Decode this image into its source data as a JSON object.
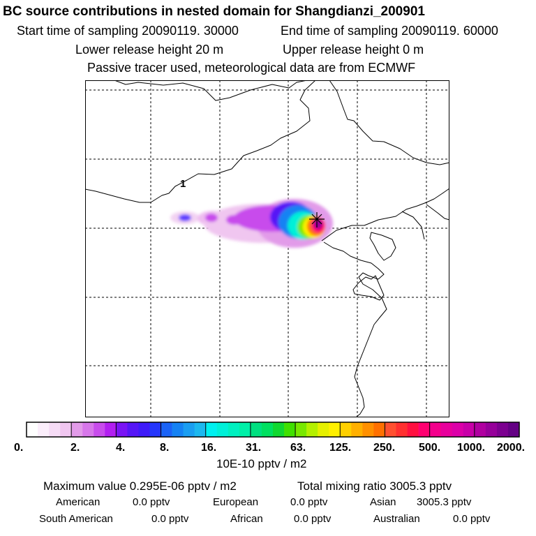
{
  "header": {
    "title": "BC  source contributions in nested domain for Shangdianzi_200901",
    "start_time": "Start time of sampling 20090119. 30000",
    "end_time": "End time of sampling 20090119. 60000",
    "lower_release": "Lower release height   20 m",
    "upper_release": "Upper release height    0 m",
    "tracer_note": "Passive tracer used, meteorological data are from ECMWF"
  },
  "map": {
    "contour_label": "1",
    "receptor_marker": "star-marker"
  },
  "colorbar": {
    "tick_labels": [
      "0.",
      "2.",
      "4.",
      "8.",
      "16.",
      "31.",
      "63.",
      "125.",
      "250.",
      "500.",
      "1000.",
      "2000."
    ],
    "unit": "10E-10 pptv / m2",
    "colors": [
      "#ffffff",
      "#fbeefb",
      "#f6dcf6",
      "#f0c6f0",
      "#e29be9",
      "#d777ea",
      "#c84cec",
      "#b21ff0",
      "#7a14f4",
      "#5616f6",
      "#3f1bf9",
      "#2536fb",
      "#1b63f6",
      "#1582f3",
      "#1a9ef1",
      "#1cb8ef",
      "#00f0f0",
      "#00f0d8",
      "#00f0c0",
      "#00f0a8",
      "#00e080",
      "#00e060",
      "#10d830",
      "#40e000",
      "#78e800",
      "#b4f000",
      "#e6f000",
      "#fff000",
      "#ffd000",
      "#ffb000",
      "#ff9000",
      "#ff7000",
      "#ff5030",
      "#ff3030",
      "#ff1040",
      "#ff0070",
      "#f4008c",
      "#e8009c",
      "#dc00a8",
      "#c800a8",
      "#b000a0",
      "#96009a",
      "#7c0090",
      "#640084"
    ]
  },
  "stats": {
    "max_value": "Maximum value  0.295E-06 pptv / m2",
    "total_mixing": "Total mixing ratio     3005.3 pptv",
    "regions": [
      {
        "name": "American",
        "value": "0.0 pptv"
      },
      {
        "name": "European",
        "value": "0.0 pptv"
      },
      {
        "name": "Asian",
        "value": "3005.3 pptv"
      },
      {
        "name": "South American",
        "value": "0.0 pptv"
      },
      {
        "name": "African",
        "value": "0.0 pptv"
      },
      {
        "name": "Australian",
        "value": "0.0 pptv"
      }
    ]
  }
}
